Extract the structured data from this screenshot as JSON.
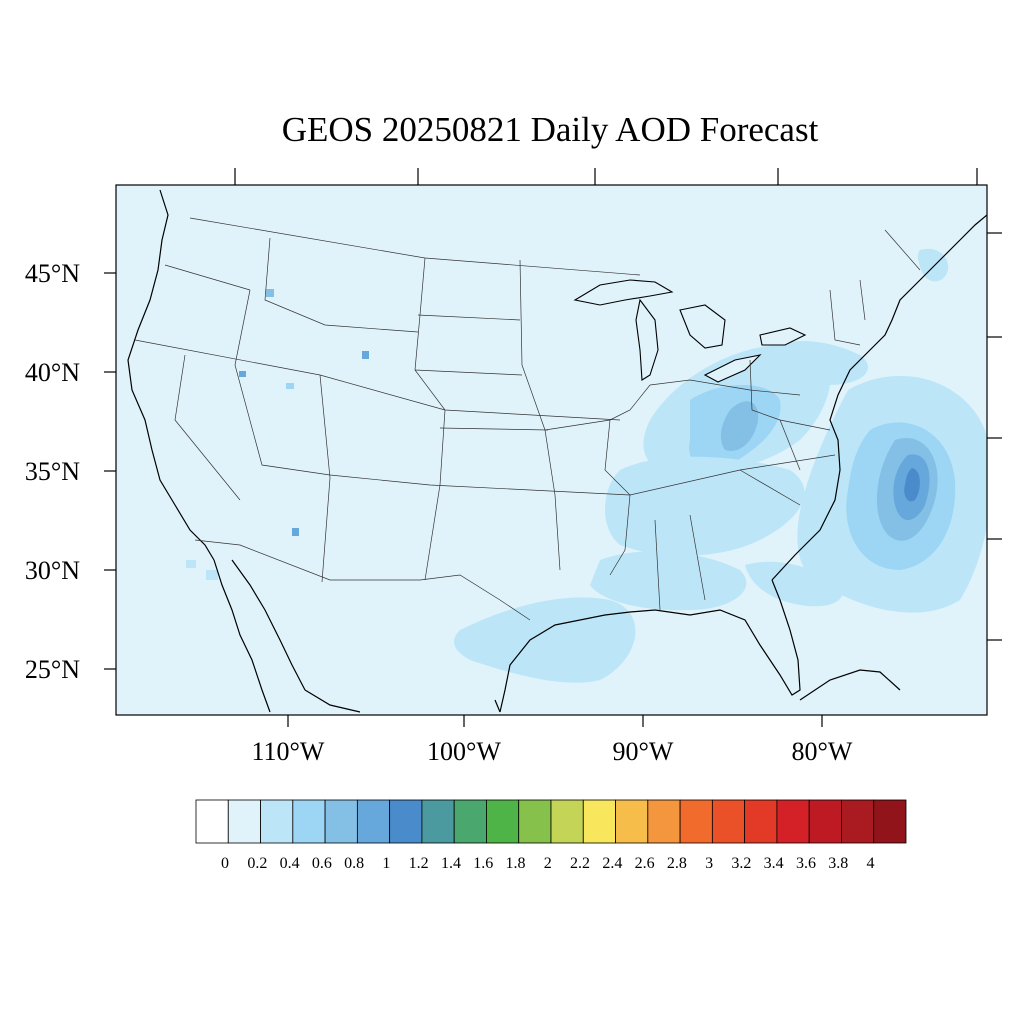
{
  "title": "GEOS 20250821 Daily AOD Forecast",
  "map": {
    "projection": "conic",
    "lon_range": [
      -120,
      -72
    ],
    "lat_range": [
      22,
      50
    ],
    "lat_labels": [
      {
        "lat": 45,
        "label": "45°N"
      },
      {
        "lat": 40,
        "label": "40°N"
      },
      {
        "lat": 35,
        "label": "35°N"
      },
      {
        "lat": 30,
        "label": "30°N"
      },
      {
        "lat": 25,
        "label": "25°N"
      }
    ],
    "lon_labels": [
      {
        "lon": -110,
        "label": "110°W"
      },
      {
        "lon": -100,
        "label": "100°W"
      },
      {
        "lon": -90,
        "label": "90°W"
      },
      {
        "lon": -80,
        "label": "80°W"
      }
    ],
    "ocean_color": "#e0f3fb",
    "land_color": "#dff2fa",
    "features": [
      {
        "name": "atlantic-offshore-plume",
        "peak_aod": 1.0
      },
      {
        "name": "ohio-valley-appalachian-haze",
        "peak_aod": 0.8
      },
      {
        "name": "gulf-coast-haze",
        "peak_aod": 0.4
      },
      {
        "name": "southeast-haze",
        "peak_aod": 0.4
      },
      {
        "name": "western-fire-hotspots",
        "peak_aod": 0.8
      }
    ]
  },
  "colorbar": {
    "colors": [
      "#ffffff",
      "#e0f3fb",
      "#bce6f8",
      "#9dd6f4",
      "#84c0e6",
      "#66a7dc",
      "#4a8bcb",
      "#4a9aa0",
      "#4aa76e",
      "#4fb447",
      "#86c24b",
      "#c4d456",
      "#f8e65c",
      "#f6bd4b",
      "#f4963d",
      "#f16b2d",
      "#eb5128",
      "#e23a26",
      "#d32127",
      "#bd1a24",
      "#a91b20",
      "#92141b"
    ],
    "tick_labels": [
      "0",
      "0.2",
      "0.4",
      "0.6",
      "0.8",
      "1",
      "1.2",
      "1.4",
      "1.6",
      "1.8",
      "2",
      "2.2",
      "2.4",
      "2.6",
      "2.8",
      "3",
      "3.2",
      "3.4",
      "3.6",
      "3.8",
      "4"
    ]
  }
}
